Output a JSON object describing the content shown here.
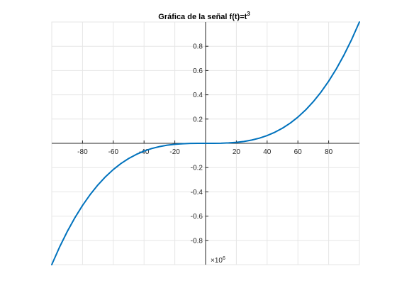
{
  "chart_data": {
    "type": "line",
    "title_main": "Gráfica de la señal f(t)=t",
    "title_sup": "3",
    "xlabel": "",
    "ylabel": "",
    "xlim": [
      -100,
      100
    ],
    "ylim": [
      -1000000,
      1000000
    ],
    "grid": true,
    "x_ticks": [
      -80,
      -60,
      -40,
      -20,
      20,
      40,
      60,
      80
    ],
    "x_tick_labels": [
      "-80",
      "-60",
      "-40",
      "-20",
      "20",
      "40",
      "60",
      "80"
    ],
    "y_ticks": [
      -800000,
      -600000,
      -400000,
      -200000,
      200000,
      400000,
      600000,
      800000
    ],
    "y_tick_labels": [
      "-0.8",
      "-0.6",
      "-0.4",
      "-0.2",
      "0.2",
      "0.4",
      "0.6",
      "0.8"
    ],
    "y_exponent_base": "×10",
    "y_exponent_power": "6",
    "line_color": "#0072BD",
    "series": [
      {
        "function": "t^3",
        "x": [
          -100,
          -95,
          -90,
          -85,
          -80,
          -75,
          -70,
          -65,
          -60,
          -55,
          -50,
          -45,
          -40,
          -35,
          -30,
          -25,
          -20,
          -15,
          -10,
          -5,
          0,
          5,
          10,
          15,
          20,
          25,
          30,
          35,
          40,
          45,
          50,
          55,
          60,
          65,
          70,
          75,
          80,
          85,
          90,
          95,
          100
        ],
        "y": [
          -1000000,
          -857375,
          -729000,
          -614125,
          -512000,
          -421875,
          -343000,
          -274625,
          -216000,
          -166375,
          -125000,
          -91125,
          -64000,
          -42875,
          -27000,
          -15625,
          -8000,
          -3375,
          -1000,
          -125,
          0,
          125,
          1000,
          3375,
          8000,
          15625,
          27000,
          42875,
          64000,
          91125,
          125000,
          166375,
          216000,
          274625,
          343000,
          421875,
          512000,
          614125,
          729000,
          857375,
          1000000
        ]
      }
    ]
  }
}
